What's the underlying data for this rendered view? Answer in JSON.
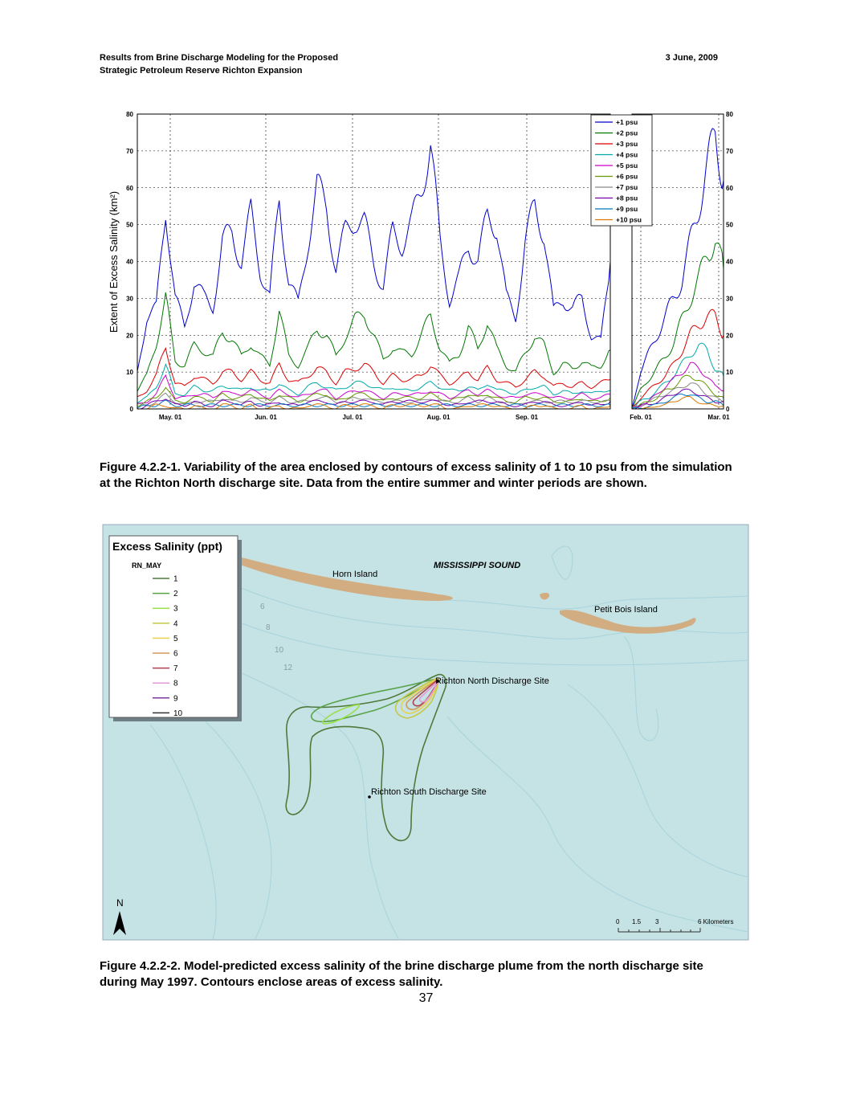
{
  "header": {
    "line1": "Results from Brine Discharge Modeling for the Proposed",
    "line2": "Strategic Petroleum Reserve Richton Expansion",
    "date": "3 June, 2009"
  },
  "chart_data": {
    "type": "line",
    "ylabel": "Extent of Excess Salinity (km²)",
    "ylim": [
      0,
      80
    ],
    "yticks": [
      "0",
      "10",
      "20",
      "30",
      "40",
      "50",
      "60",
      "70",
      "80"
    ],
    "panels": [
      {
        "name": "summer",
        "xticks": [
          "May. 01",
          "Jun. 01",
          "Jul. 01",
          "Aug. 01",
          "Sep. 01"
        ]
      },
      {
        "name": "winter",
        "xticks": [
          "Feb. 01",
          "Mar. 01"
        ]
      }
    ],
    "grid": true,
    "legend_position": "top-right",
    "series": [
      {
        "name": "+1 psu",
        "color": "#0000cc",
        "summer": [
          10,
          25,
          27,
          55,
          30,
          22,
          35,
          30,
          28,
          45,
          48,
          40,
          53,
          38,
          30,
          57,
          35,
          28,
          45,
          60,
          55,
          38,
          48,
          52,
          50,
          40,
          33,
          48,
          45,
          50,
          60,
          72,
          45,
          30,
          35,
          45,
          40,
          52,
          50,
          30,
          25,
          45,
          55,
          48,
          26,
          30,
          27,
          30,
          20,
          18,
          40
        ],
        "winter": [
          0,
          10,
          15,
          20,
          25,
          30,
          35,
          45,
          55,
          65,
          75,
          62
        ]
      },
      {
        "name": "+2 psu",
        "color": "#007700",
        "summer": [
          5,
          9,
          18,
          30,
          13,
          12,
          17,
          16,
          14,
          21,
          19,
          14,
          18,
          14,
          12,
          27,
          14,
          12,
          16,
          22,
          20,
          14,
          20,
          24,
          26,
          20,
          13,
          17,
          15,
          15,
          20,
          25,
          17,
          12,
          15,
          22,
          16,
          24,
          16,
          12,
          10,
          15,
          20,
          17,
          10,
          12,
          11,
          13,
          11,
          12,
          16
        ],
        "winter": [
          0,
          5,
          8,
          11,
          14,
          18,
          24,
          30,
          35,
          42,
          46,
          38
        ]
      },
      {
        "name": "+3 psu",
        "color": "#dd0000",
        "summer": [
          3,
          5,
          9,
          17,
          7,
          6,
          9,
          8,
          7,
          10,
          10,
          8,
          10,
          8,
          7,
          12,
          8,
          7,
          9,
          11,
          10,
          7,
          10,
          11,
          12,
          10,
          7,
          9,
          8,
          8,
          9,
          12,
          9,
          7,
          8,
          10,
          8,
          11,
          8,
          7,
          6,
          8,
          10,
          9,
          6,
          7,
          6,
          7,
          6,
          7,
          8
        ],
        "winter": [
          0,
          3,
          5,
          7,
          9,
          12,
          16,
          20,
          23,
          25,
          25,
          20
        ]
      },
      {
        "name": "+4 psu",
        "color": "#00aaaa",
        "summer": [
          2,
          3,
          6,
          12,
          4,
          4,
          6,
          5,
          5,
          6,
          6,
          5,
          6,
          5,
          5,
          7,
          5,
          4,
          6,
          7,
          6,
          5,
          6,
          7,
          7,
          6,
          5,
          6,
          5,
          5,
          6,
          7,
          6,
          5,
          5,
          6,
          5,
          7,
          5,
          5,
          4,
          5,
          6,
          6,
          4,
          5,
          4,
          5,
          4,
          5,
          5
        ],
        "winter": [
          0,
          2,
          3,
          5,
          7,
          9,
          12,
          15,
          17,
          16,
          11,
          9
        ]
      },
      {
        "name": "+5 psu",
        "color": "#cc00cc",
        "summer": [
          1,
          2,
          4,
          9,
          3,
          3,
          4,
          4,
          3,
          5,
          4,
          4,
          5,
          4,
          3,
          5,
          4,
          3,
          4,
          5,
          5,
          3,
          4,
          5,
          5,
          4,
          3,
          4,
          4,
          4,
          4,
          5,
          4,
          3,
          4,
          5,
          4,
          5,
          4,
          3,
          3,
          4,
          4,
          4,
          3,
          3,
          3,
          4,
          3,
          3,
          4
        ],
        "winter": [
          0,
          1,
          2,
          4,
          6,
          8,
          10,
          12,
          11,
          9,
          6,
          5
        ]
      },
      {
        "name": "+6 psu",
        "color": "#669900",
        "summer": [
          1,
          2,
          3,
          6,
          2,
          2,
          3,
          3,
          2,
          4,
          3,
          3,
          4,
          3,
          2,
          4,
          3,
          2,
          3,
          4,
          4,
          2,
          3,
          4,
          4,
          3,
          2,
          3,
          3,
          3,
          3,
          4,
          3,
          2,
          3,
          4,
          3,
          4,
          3,
          2,
          2,
          3,
          3,
          3,
          2,
          2,
          2,
          3,
          2,
          2,
          3
        ],
        "winter": [
          0,
          1,
          2,
          3,
          5,
          6,
          8,
          9,
          8,
          6,
          4,
          3
        ]
      },
      {
        "name": "+7 psu",
        "color": "#888888",
        "summer": [
          1,
          1,
          2,
          4,
          2,
          1,
          2,
          2,
          2,
          3,
          2,
          2,
          3,
          2,
          2,
          3,
          2,
          2,
          2,
          3,
          3,
          2,
          2,
          3,
          3,
          2,
          2,
          2,
          2,
          2,
          2,
          3,
          2,
          2,
          2,
          3,
          2,
          3,
          2,
          2,
          1,
          2,
          2,
          2,
          2,
          2,
          2,
          2,
          2,
          2,
          2
        ],
        "winter": [
          0,
          1,
          2,
          3,
          4,
          5,
          6,
          7,
          6,
          4,
          3,
          2
        ]
      },
      {
        "name": "+8 psu",
        "color": "#7700aa",
        "summer": [
          0,
          1,
          2,
          3,
          1,
          1,
          2,
          1,
          1,
          2,
          2,
          1,
          2,
          1,
          1,
          2,
          1,
          1,
          2,
          2,
          2,
          1,
          2,
          2,
          2,
          2,
          1,
          2,
          2,
          2,
          2,
          2,
          2,
          1,
          1,
          2,
          2,
          2,
          2,
          1,
          1,
          1,
          2,
          2,
          1,
          1,
          1,
          2,
          1,
          1,
          2
        ],
        "winter": [
          0,
          1,
          1,
          2,
          3,
          4,
          5,
          5,
          4,
          3,
          2,
          2
        ]
      },
      {
        "name": "+9 psu",
        "color": "#0077bb",
        "summer": [
          0,
          1,
          1,
          2,
          1,
          1,
          1,
          1,
          1,
          1,
          1,
          1,
          1,
          1,
          1,
          1,
          1,
          1,
          1,
          1,
          1,
          1,
          1,
          1,
          1,
          1,
          1,
          1,
          1,
          1,
          1,
          1,
          1,
          1,
          1,
          1,
          1,
          1,
          1,
          1,
          1,
          1,
          1,
          1,
          1,
          1,
          1,
          1,
          1,
          1,
          1
        ],
        "winter": [
          0,
          0,
          1,
          1,
          2,
          3,
          4,
          4,
          3,
          2,
          2,
          1
        ]
      },
      {
        "name": "+10 psu",
        "color": "#dd7700",
        "summer": [
          0,
          0,
          1,
          1,
          0,
          0,
          1,
          0,
          0,
          1,
          1,
          0,
          1,
          0,
          0,
          1,
          0,
          0,
          1,
          1,
          1,
          0,
          1,
          1,
          1,
          1,
          0,
          1,
          1,
          1,
          1,
          1,
          1,
          0,
          0,
          1,
          1,
          1,
          1,
          0,
          0,
          0,
          1,
          1,
          0,
          0,
          0,
          1,
          0,
          0,
          1
        ],
        "winter": [
          0,
          0,
          0,
          1,
          1,
          2,
          3,
          3,
          2,
          1,
          1,
          1
        ]
      }
    ]
  },
  "figure1_caption": "Figure 4.2.2-1.  Variability of the area enclosed by contours of excess salinity of 1 to 10 psu from the simulation at the Richton North discharge site.  Data from the entire summer and winter periods are shown.",
  "map": {
    "legend_title": "Excess Salinity (ppt)",
    "legend_subtitle": "RN_MAY",
    "legend_items": [
      {
        "label": "1",
        "color": "#4f7a3a"
      },
      {
        "label": "2",
        "color": "#58a34a"
      },
      {
        "label": "3",
        "color": "#9ae04a"
      },
      {
        "label": "4",
        "color": "#c6c84a"
      },
      {
        "label": "5",
        "color": "#e8d050"
      },
      {
        "label": "6",
        "color": "#d49a5a"
      },
      {
        "label": "7",
        "color": "#b04050"
      },
      {
        "label": "8",
        "color": "#e39ad6"
      },
      {
        "label": "9",
        "color": "#7a3aa0"
      },
      {
        "label": "10",
        "color": "#333333"
      }
    ],
    "labels": {
      "horn": "Horn Island",
      "sound": "MISSISSIPPI SOUND",
      "petit": "Petit Bois Island",
      "north": "Richton North Discharge Site",
      "south": "Richton South Discharge Site"
    },
    "depths": [
      "6",
      "8",
      "10",
      "12"
    ],
    "north_arrow": "N",
    "scale_labels": [
      "0",
      "1.5",
      "3",
      "6 Kilometers"
    ],
    "colors": {
      "water": "#c5e2e4",
      "island": "#d2ad82",
      "contour": "#a8d4dc"
    }
  },
  "figure2_caption": "Figure 4.2.2-2.  Model-predicted excess salinity of the brine discharge plume from the north discharge site during May 1997.  Contours enclose areas of excess salinity.",
  "page_number": "37"
}
